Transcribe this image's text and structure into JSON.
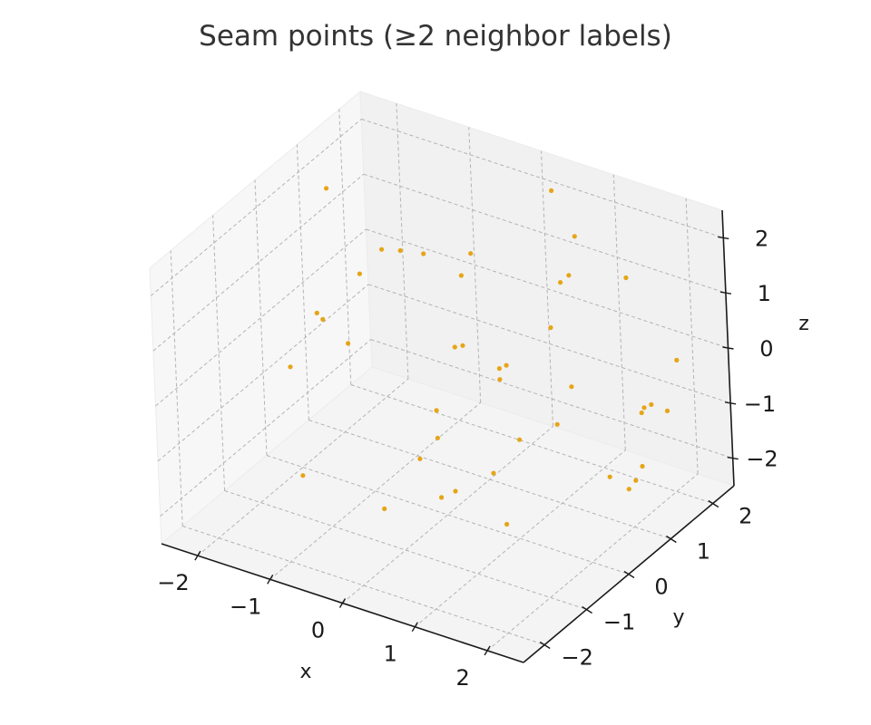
{
  "chart_data": {
    "type": "scatter",
    "title": "Seam points (≥2 neighbor labels)",
    "xlabel": "x",
    "ylabel": "y",
    "zlabel": "z",
    "xlim": [
      -2.5,
      2.5
    ],
    "ylim": [
      -2.5,
      2.5
    ],
    "zlim": [
      -2.5,
      2.5
    ],
    "xticks": [
      -2,
      -1,
      0,
      1,
      2
    ],
    "yticks": [
      -2,
      -1,
      0,
      1,
      2
    ],
    "zticks": [
      -2,
      -1,
      0,
      1,
      2
    ],
    "xtick_labels": [
      "−2",
      "−1",
      "0",
      "1",
      "2"
    ],
    "ytick_labels": [
      "−2",
      "−1",
      "0",
      "1",
      "2"
    ],
    "ztick_labels": [
      "−2",
      "−1",
      "0",
      "1",
      "2"
    ],
    "grid": true,
    "projection": "3d",
    "marker_color": "#e6a517",
    "series": [
      {
        "points": [
          {
            "x": -2.3,
            "y": 1.3,
            "z": 1.6
          },
          {
            "x": -1.5,
            "y": 1.2,
            "z": 0.9
          },
          {
            "x": -1.3,
            "y": 1.3,
            "z": 0.9
          },
          {
            "x": -1.1,
            "y": 1.5,
            "z": 0.8
          },
          {
            "x": -1.7,
            "y": 1.0,
            "z": 0.5
          },
          {
            "x": -2.0,
            "y": 0.6,
            "z": -0.2
          },
          {
            "x": -2.2,
            "y": 0.8,
            "z": -0.3
          },
          {
            "x": -1.6,
            "y": 0.5,
            "z": -0.4
          },
          {
            "x": -2.3,
            "y": 0.3,
            "z": -1.0
          },
          {
            "x": -0.9,
            "y": 1.8,
            "z": -1.0
          },
          {
            "x": -1.7,
            "y": -0.5,
            "z": -2.2
          },
          {
            "x": -0.5,
            "y": 1.6,
            "z": 1.0
          },
          {
            "x": -0.4,
            "y": 1.2,
            "z": 0.9
          },
          {
            "x": -0.3,
            "y": 1.0,
            "z": -0.2
          },
          {
            "x": 0.3,
            "y": 2.2,
            "z": 2.1
          },
          {
            "x": 0.6,
            "y": 2.2,
            "z": 1.4
          },
          {
            "x": 0.8,
            "y": 1.7,
            "z": 1.1
          },
          {
            "x": 0.8,
            "y": 1.5,
            "z": 1.1
          },
          {
            "x": 0.7,
            "y": 1.4,
            "z": 0.3
          },
          {
            "x": 0.3,
            "y": 1.0,
            "z": -0.3
          },
          {
            "x": 0.2,
            "y": 1.0,
            "z": -0.4
          },
          {
            "x": 0.2,
            "y": 1.0,
            "z": -0.6
          },
          {
            "x": -0.4,
            "y": 0.5,
            "z": -1.1
          },
          {
            "x": 1.6,
            "y": 1.7,
            "z": 1.4
          },
          {
            "x": 1.2,
            "y": 1.0,
            "z": -0.3
          },
          {
            "x": 1.1,
            "y": 0.8,
            "z": -0.9
          },
          {
            "x": 2.2,
            "y": 1.8,
            "z": 0.1
          },
          {
            "x": 1.9,
            "y": 1.5,
            "z": -0.7
          },
          {
            "x": 2.0,
            "y": 1.5,
            "z": -0.6
          },
          {
            "x": 2.1,
            "y": 1.7,
            "z": -0.8
          },
          {
            "x": 1.8,
            "y": 1.6,
            "z": -0.9
          },
          {
            "x": 1.9,
            "y": 1.4,
            "z": -1.7
          },
          {
            "x": 1.8,
            "y": 1.4,
            "z": -2.0
          },
          {
            "x": 1.5,
            "y": 1.3,
            "z": -2.0
          },
          {
            "x": 1.7,
            "y": 1.4,
            "z": -2.2
          },
          {
            "x": -0.4,
            "y": 0.5,
            "z": -1.6
          },
          {
            "x": -0.6,
            "y": 0.4,
            "z": -2.0
          },
          {
            "x": 0.5,
            "y": 0.9,
            "z": -1.5
          },
          {
            "x": 0.3,
            "y": 0.6,
            "z": -2.0
          },
          {
            "x": -0.2,
            "y": 0.2,
            "z": -2.4
          },
          {
            "x": 0.0,
            "y": 0.2,
            "z": -2.2
          },
          {
            "x": 0.7,
            "y": 0.2,
            "z": -2.5
          },
          {
            "x": -0.7,
            "y": -0.3,
            "z": -2.5
          }
        ]
      }
    ]
  }
}
